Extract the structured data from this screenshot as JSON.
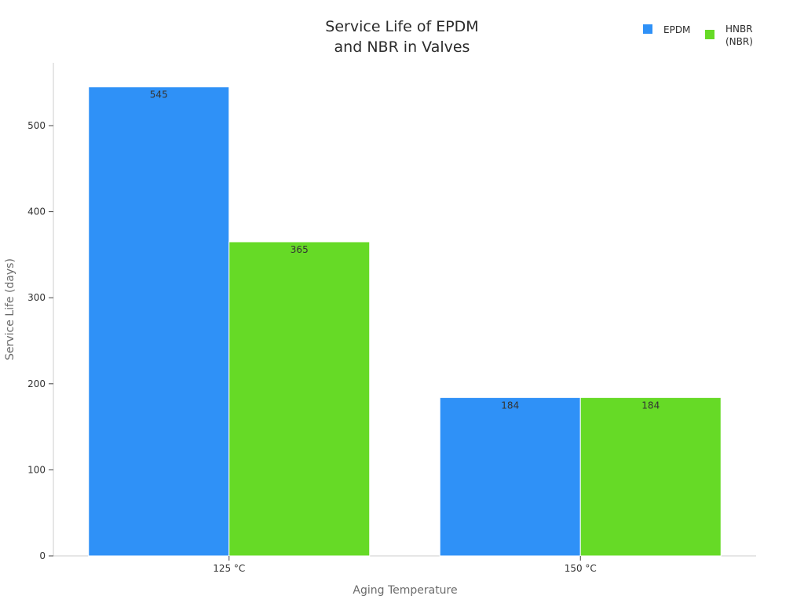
{
  "chart_data": {
    "type": "bar",
    "title": [
      "Service Life of EPDM",
      "and NBR in Valves"
    ],
    "xlabel": "Aging Temperature",
    "ylabel": "Service Life (days)",
    "categories": [
      "125 °C",
      "150 °C"
    ],
    "series": [
      {
        "name": "EPDM",
        "values": [
          545,
          184
        ],
        "color": "#2f91f7"
      },
      {
        "name": "HNBR (NBR)",
        "legend_lines": [
          "HNBR",
          "(NBR)"
        ],
        "values": [
          365,
          184
        ],
        "color": "#66da26"
      }
    ],
    "ylim": [
      0,
      573
    ],
    "yticks": [
      0,
      100,
      200,
      300,
      400,
      500
    ],
    "grid": false,
    "legend_position": "top-right"
  }
}
